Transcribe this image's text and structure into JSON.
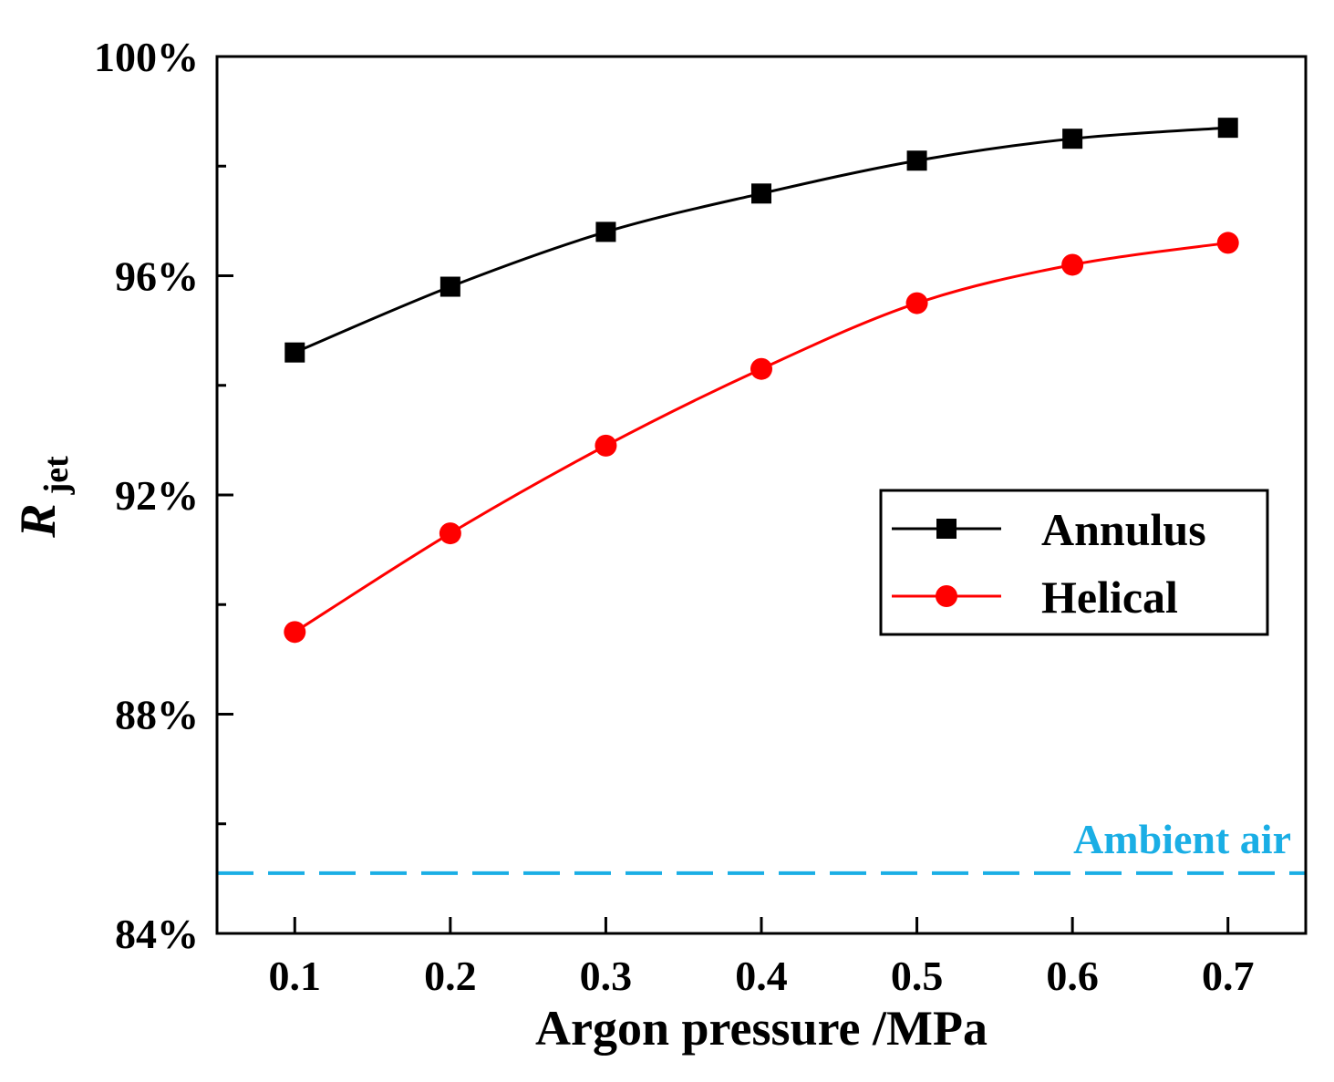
{
  "chart_data": {
    "type": "line",
    "title": "",
    "xlabel": "Argon pressure /MPa",
    "ylabel_main": "R",
    "ylabel_sub": "jet",
    "x": [
      0.1,
      0.2,
      0.3,
      0.4,
      0.5,
      0.6,
      0.7
    ],
    "x_tick_labels": [
      "0.1",
      "0.2",
      "0.3",
      "0.4",
      "0.5",
      "0.6",
      "0.7"
    ],
    "xlim": [
      0.05,
      0.75
    ],
    "ylim": [
      84,
      100
    ],
    "y_tick_values": [
      84,
      88,
      92,
      96,
      100
    ],
    "y_tick_labels": [
      "84%",
      "88%",
      "92%",
      "96%",
      "100%"
    ],
    "y_minor_tick_values": [
      86,
      90,
      94,
      98
    ],
    "series": [
      {
        "name": "Annulus",
        "marker": "square",
        "color": "#000000",
        "values": [
          94.6,
          95.8,
          96.8,
          97.5,
          98.1,
          98.5,
          98.7
        ]
      },
      {
        "name": "Helical",
        "marker": "circle",
        "color": "#ff0000",
        "values": [
          89.5,
          91.3,
          92.9,
          94.3,
          95.5,
          96.2,
          96.6
        ]
      }
    ],
    "reference_line": {
      "label": "Ambient air",
      "value": 85.1,
      "style": "dashed",
      "color": "#1aaee5"
    },
    "legend_placement": "center-right",
    "grid": false
  }
}
